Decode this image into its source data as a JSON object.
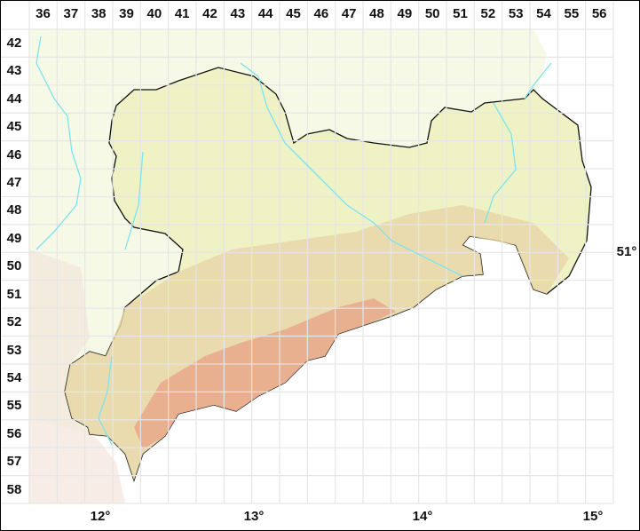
{
  "grid": {
    "columns": [
      "36",
      "37",
      "38",
      "39",
      "40",
      "41",
      "42",
      "43",
      "44",
      "45",
      "46",
      "47",
      "48",
      "49",
      "50",
      "51",
      "52",
      "53",
      "54",
      "55",
      "56"
    ],
    "rows": [
      "42",
      "43",
      "44",
      "45",
      "46",
      "47",
      "48",
      "49",
      "50",
      "51",
      "52",
      "53",
      "54",
      "55",
      "56",
      "57",
      "58"
    ]
  },
  "axes": {
    "longitude": [
      "12°",
      "13°",
      "14°",
      "15°"
    ],
    "latitude": [
      "51°"
    ]
  },
  "colors": {
    "region_fill": "#eef2c4",
    "neighbour_fill": "#f5f9e6",
    "highland": "#e7d7a9",
    "mountain": "#e7a88a",
    "river": "#7fe3ee",
    "border": "#111111",
    "grid": "#e6e6e6"
  }
}
